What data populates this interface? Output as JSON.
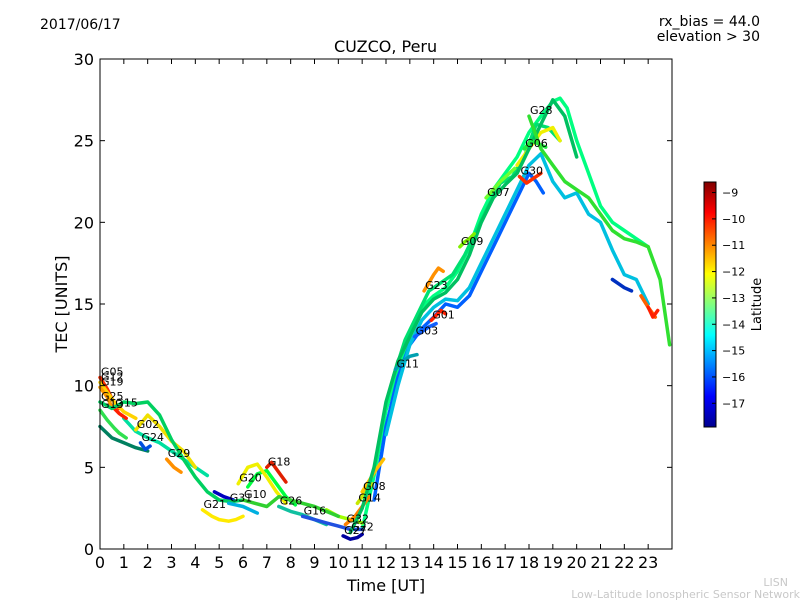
{
  "header": {
    "date": "2017/06/17",
    "title": "CUZCO, Peru",
    "rx_bias": "rx_bias = 44.0",
    "elevation": "elevation > 30"
  },
  "footer": {
    "line1": "LISN",
    "line2": "Low-Latitude Ionospheric Sensor Network"
  },
  "chart_data": {
    "type": "scatter",
    "title": "CUZCO, Peru",
    "xlabel": "Time [UT]",
    "ylabel": "TEC [UNITS]",
    "xlim": [
      0,
      24
    ],
    "ylim": [
      0,
      30
    ],
    "xticks": [
      "0",
      "1",
      "2",
      "3",
      "4",
      "5",
      "6",
      "7",
      "8",
      "9",
      "10",
      "11",
      "12",
      "13",
      "14",
      "15",
      "16",
      "17",
      "18",
      "19",
      "20",
      "21",
      "22",
      "23"
    ],
    "yticks": [
      "0",
      "5",
      "10",
      "15",
      "20",
      "25",
      "30"
    ],
    "grid": false,
    "colorbar": {
      "label": "Latitude",
      "range": [
        -17.9,
        -8.6
      ],
      "ticks": [
        "-9",
        "-10",
        "-11",
        "-12",
        "-13",
        "-14",
        "-15",
        "-16",
        "-17"
      ],
      "colormap": [
        "#00008f",
        "#0000ff",
        "#0080ff",
        "#00ffff",
        "#80ff80",
        "#ffff00",
        "#ff8000",
        "#ff0000",
        "#800000"
      ]
    },
    "series": [
      {
        "name": "G05",
        "color": "#ff3000",
        "x": [
          0,
          0.3,
          0.5,
          0.8
        ],
        "y": [
          10.5,
          9.8,
          9.2,
          8.6
        ]
      },
      {
        "name": "G12",
        "color": "#ffd200",
        "x": [
          0,
          0.3,
          0.6,
          1.0,
          1.5
        ],
        "y": [
          10.2,
          9.6,
          9.0,
          8.4,
          8.0
        ]
      },
      {
        "name": "G19",
        "color": "#ff9a00",
        "x": [
          0,
          0.3,
          0.5
        ],
        "y": [
          9.9,
          9.3,
          8.7
        ]
      },
      {
        "name": "G13",
        "color": "#30e050",
        "x": [
          0,
          0.3,
          0.6,
          0.8,
          1.1
        ],
        "y": [
          8.5,
          7.9,
          7.4,
          7.1,
          6.8
        ]
      },
      {
        "name": "G15",
        "color": "#ff2000",
        "x": [
          0.6,
          0.8,
          1.1
        ],
        "y": [
          8.6,
          8.3,
          8.0
        ]
      },
      {
        "name": "G02",
        "color": "#f0e000",
        "x": [
          1.5,
          2.0,
          2.5,
          3.0,
          3.5,
          4.0
        ],
        "y": [
          7.3,
          8.2,
          7.5,
          6.6,
          6.0,
          5.0
        ]
      },
      {
        "name": "G24",
        "color": "#0050e0",
        "x": [
          1.7,
          1.9,
          2.1
        ],
        "y": [
          6.5,
          6.1,
          6.3
        ]
      },
      {
        "name": "G29",
        "color": "#ff9000",
        "x": [
          2.8,
          3.1,
          3.4
        ],
        "y": [
          5.5,
          5.0,
          4.7
        ]
      },
      {
        "name": "G25",
        "color": "#00d060",
        "x": [
          0,
          0.5,
          1.0,
          1.5,
          2.0,
          2.5,
          3.0,
          3.5,
          4.0,
          4.5,
          5.0,
          5.5,
          6.0
        ],
        "y": [
          9.0,
          8.6,
          9.0,
          8.9,
          9.0,
          8.2,
          6.7,
          5.5,
          4.4,
          3.5,
          3.0,
          2.9,
          3.0
        ]
      },
      {
        "name": "G21",
        "color": "#ffea00",
        "x": [
          4.3,
          4.7,
          5.0,
          5.4,
          5.7,
          6.0
        ],
        "y": [
          2.4,
          2.0,
          1.8,
          1.7,
          1.8,
          2.0
        ]
      },
      {
        "name": "G31",
        "color": "#00b0e0",
        "x": [
          5.4,
          5.7,
          6.0,
          6.3,
          6.6
        ],
        "y": [
          2.8,
          2.7,
          2.6,
          2.4,
          2.2
        ]
      },
      {
        "name": "G20",
        "color": "#f0f000",
        "x": [
          5.8,
          6.2,
          6.6,
          7.0,
          7.4,
          7.8
        ],
        "y": [
          4.0,
          5.0,
          5.2,
          4.4,
          3.5,
          2.8
        ]
      },
      {
        "name": "G18",
        "color": "#e02000",
        "x": [
          7.0,
          7.2,
          7.4,
          7.6,
          7.8
        ],
        "y": [
          5.0,
          5.3,
          4.9,
          4.5,
          4.1
        ]
      },
      {
        "name": "G10",
        "color": "#30d030",
        "x": [
          6.0,
          6.5,
          7.0,
          7.5,
          8.0,
          8.5,
          9.0,
          9.5,
          10.0
        ],
        "y": [
          3.0,
          2.8,
          2.6,
          3.2,
          3.0,
          2.8,
          2.6,
          2.3,
          2.0
        ]
      },
      {
        "name": "G26",
        "color": "#10c0a0",
        "x": [
          7.5,
          8.0,
          8.5,
          9.0,
          9.5
        ],
        "y": [
          2.6,
          2.3,
          2.1,
          1.8,
          1.5
        ]
      },
      {
        "name": "G16",
        "color": "#2050e0",
        "x": [
          8.5,
          9.0,
          9.5,
          10.0,
          10.5,
          11.0
        ],
        "y": [
          2.0,
          1.8,
          1.6,
          1.4,
          1.2,
          1.2
        ]
      },
      {
        "name": "G27",
        "color": "#0000a0",
        "x": [
          10.2,
          10.5,
          10.8,
          11.0
        ],
        "y": [
          0.8,
          0.6,
          0.7,
          0.9
        ]
      },
      {
        "name": "G32",
        "color": "#ff8000",
        "x": [
          10.3,
          10.7,
          11.0,
          11.3
        ],
        "y": [
          1.5,
          2.0,
          2.6,
          3.2
        ]
      },
      {
        "name": "G14",
        "color": "#c8e800",
        "x": [
          10.8,
          11.1,
          11.4
        ],
        "y": [
          2.8,
          3.4,
          4.0
        ]
      },
      {
        "name": "G08",
        "color": "#ffc000",
        "x": [
          11.0,
          11.3,
          11.6,
          11.9
        ],
        "y": [
          3.5,
          4.2,
          4.9,
          5.5
        ]
      },
      {
        "name": "G22",
        "color": "#00c060",
        "x": [
          10.5,
          11.0,
          11.5,
          12.0,
          12.5,
          13.0,
          13.5,
          14.0,
          14.5,
          15.0,
          15.5,
          16.0,
          16.5,
          17.0,
          17.5,
          18.0,
          18.5,
          19.0,
          19.5,
          20.0
        ],
        "y": [
          1.0,
          2.5,
          5.0,
          9.0,
          11.5,
          13.0,
          14.5,
          15.3,
          15.7,
          16.5,
          18.0,
          20.0,
          21.5,
          22.3,
          23.0,
          24.5,
          26.0,
          27.5,
          26.5,
          24.0
        ]
      },
      {
        "name": "G11",
        "color": "#00a0b0",
        "x": [
          12.4,
          12.7,
          13.0,
          13.3
        ],
        "y": [
          11.0,
          11.5,
          11.8,
          11.9
        ]
      },
      {
        "name": "G23",
        "color": "#ff9000",
        "x": [
          13.6,
          13.8,
          14.0,
          14.2,
          14.4
        ],
        "y": [
          15.8,
          16.3,
          16.8,
          17.2,
          17.0
        ]
      },
      {
        "name": "G03",
        "color": "#1060ff",
        "x": [
          13.2,
          13.5,
          13.8,
          14.1
        ],
        "y": [
          13.0,
          13.3,
          13.6,
          13.8
        ]
      },
      {
        "name": "G01",
        "color": "#ff2000",
        "x": [
          13.9,
          14.1,
          14.3,
          14.5
        ],
        "y": [
          14.0,
          14.3,
          14.6,
          14.4
        ]
      },
      {
        "name": "G09",
        "color": "#80f000",
        "x": [
          15.1,
          15.3,
          15.5,
          15.7
        ],
        "y": [
          18.5,
          18.8,
          19.0,
          19.3
        ]
      },
      {
        "name": "G07",
        "color": "#70ff30",
        "x": [
          16.2,
          16.5,
          16.8,
          17.1,
          17.4
        ],
        "y": [
          21.5,
          22.0,
          22.5,
          22.9,
          23.3
        ]
      },
      {
        "name": "G30",
        "color": "#ff3000",
        "x": [
          17.6,
          17.9,
          18.2,
          18.5
        ],
        "y": [
          22.8,
          22.4,
          22.7,
          23.0
        ]
      },
      {
        "name": "G06",
        "color": "#20f040",
        "x": [
          17.8,
          18.1,
          18.4,
          18.7
        ],
        "y": [
          24.5,
          25.0,
          24.8,
          24.6
        ]
      },
      {
        "name": "G28",
        "color": "#30e030",
        "x": [
          18.0,
          18.5,
          19.0,
          19.5,
          20.0,
          20.5,
          21.0,
          21.5,
          22.0,
          22.5,
          23.0,
          23.5,
          23.9
        ],
        "y": [
          26.5,
          24.5,
          23.5,
          22.5,
          22.0,
          21.5,
          20.5,
          19.5,
          19.0,
          18.8,
          18.5,
          16.5,
          12.5
        ]
      }
    ],
    "extra_trails": [
      {
        "color": "#00ff80",
        "x": [
          11,
          11.5,
          12,
          12.5,
          13,
          13.5,
          14,
          14.5,
          15,
          15.5,
          16,
          16.5,
          17,
          17.5,
          18,
          18.5,
          19,
          19.3,
          19.6,
          20,
          20.5,
          21,
          21.5,
          22,
          22.5,
          23
        ],
        "y": [
          1.2,
          4.5,
          8.5,
          11,
          13,
          14.8,
          15.5,
          16,
          17,
          18.5,
          20.5,
          22,
          23,
          24,
          25.5,
          26.5,
          27.4,
          27.6,
          27,
          25,
          23,
          21,
          20,
          19.5,
          19,
          18.5
        ]
      },
      {
        "color": "#0060ff",
        "x": [
          11.5,
          12,
          12.5,
          13,
          13.5,
          14,
          14.5,
          15,
          15.5,
          16,
          16.5,
          17,
          17.5,
          18,
          18.3,
          18.6
        ],
        "y": [
          3,
          7.5,
          10.5,
          12.5,
          13.5,
          14.2,
          15,
          14.8,
          15.5,
          17,
          18.5,
          20,
          21.5,
          23,
          22.5,
          21.8
        ]
      },
      {
        "color": "#00c0e0",
        "x": [
          12,
          12.5,
          13,
          13.5,
          14,
          14.5,
          15,
          15.5,
          16,
          16.5,
          17,
          17.5,
          18,
          18.5,
          19,
          19.5,
          20,
          20.5,
          21,
          21.5,
          22,
          22.5,
          23
        ],
        "y": [
          7,
          10,
          12.5,
          14,
          14.8,
          15.3,
          15.2,
          16,
          17.5,
          19,
          20.5,
          22,
          23.5,
          24.2,
          22.5,
          21.5,
          21.8,
          20.5,
          20,
          18.3,
          16.8,
          16.5,
          15
        ]
      },
      {
        "color": "#00e070",
        "x": [
          12.3,
          12.8,
          13.3,
          13.8,
          14.3,
          14.8,
          15.3,
          15.8,
          16.3,
          16.8,
          17.3,
          17.8,
          18.3,
          18.8,
          19.3
        ],
        "y": [
          10.5,
          12.8,
          14.3,
          15.8,
          16.3,
          16.8,
          18,
          19.5,
          21,
          22.4,
          22.8,
          24,
          26,
          25.8,
          25
        ]
      },
      {
        "color": "#f0f000",
        "x": [
          17.5,
          18,
          18.5,
          19,
          19.3
        ],
        "y": [
          23.5,
          24.5,
          25.5,
          25.8,
          25
        ]
      },
      {
        "color": "#ff6000",
        "x": [
          22.7,
          23,
          23.3
        ],
        "y": [
          15.5,
          14.8,
          14.2
        ]
      },
      {
        "color": "#ff2000",
        "x": [
          23.0,
          23.2,
          23.4
        ],
        "y": [
          14.8,
          14.2,
          14.6
        ]
      },
      {
        "color": "#0030c0",
        "x": [
          21.5,
          21.8,
          22,
          22.3
        ],
        "y": [
          16.5,
          16.2,
          16.0,
          15.8
        ]
      },
      {
        "color": "#0000c0",
        "x": [
          4.8,
          5.2,
          5.6
        ],
        "y": [
          3.5,
          3.2,
          3.0
        ]
      },
      {
        "color": "#00e0a0",
        "x": [
          1.0,
          1.5,
          2.0,
          2.5,
          3.0,
          3.5,
          4.0,
          4.5
        ],
        "y": [
          8.0,
          7.2,
          6.8,
          6.5,
          6.0,
          5.5,
          5.0,
          4.5
        ]
      },
      {
        "color": "#008060",
        "x": [
          0,
          0.5,
          1.0,
          1.5,
          2.0
        ],
        "y": [
          7.5,
          6.8,
          6.5,
          6.2,
          6.0
        ]
      },
      {
        "color": "#a0ff00",
        "x": [
          9.5,
          10,
          10.5,
          11
        ],
        "y": [
          2.4,
          2.0,
          1.8,
          1.6
        ]
      },
      {
        "color": "#00ff40",
        "x": [
          6.2,
          6.6,
          7.0,
          7.4,
          7.8,
          8.2
        ],
        "y": [
          3.8,
          4.6,
          4.8,
          4.0,
          3.2,
          2.7
        ]
      }
    ]
  }
}
